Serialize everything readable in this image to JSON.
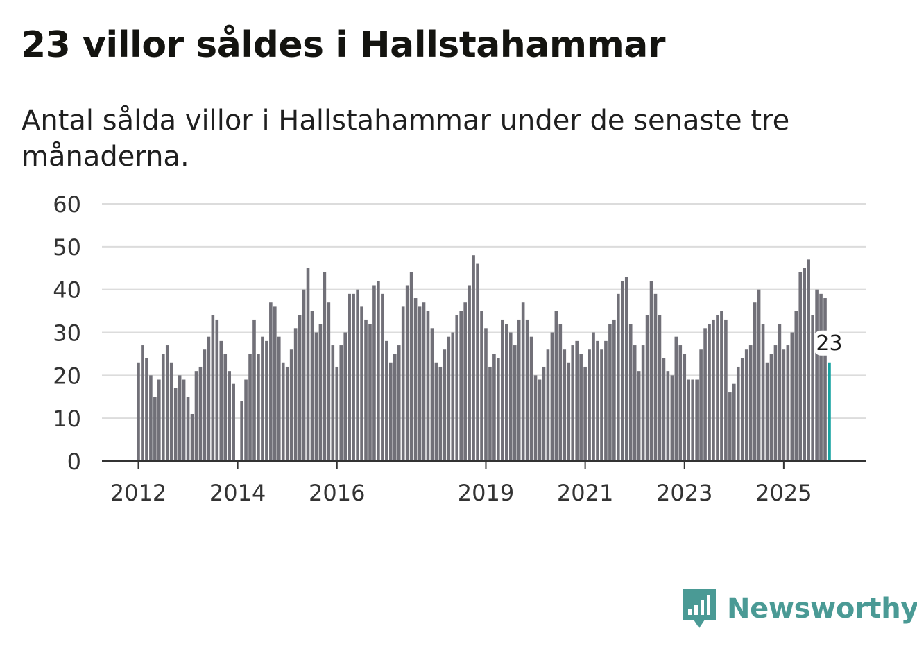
{
  "header": {
    "title": "23 villor såldes i Hallstahammar",
    "subtitle": "Antal sålda villor i Hallstahammar under de senaste tre månaderna."
  },
  "brand": {
    "name": "Newsworthy",
    "logo_icon": "bar-chart-speech-bubble-icon"
  },
  "colors": {
    "bar": "#717078",
    "highlight": "#17a3a1",
    "grid": "#dcdcdc",
    "axis": "#333333",
    "brand": "#4a9a95"
  },
  "chart_data": {
    "type": "bar",
    "title": "23 villor såldes i Hallstahammar",
    "xlabel": "",
    "ylabel": "",
    "ylim": [
      0,
      60
    ],
    "yticks": [
      0,
      10,
      20,
      30,
      40,
      50,
      60
    ],
    "start": "2012-01",
    "frequency": "monthly",
    "xticks": [
      {
        "label": "2012",
        "index": 0
      },
      {
        "label": "2014",
        "index": 24
      },
      {
        "label": "2016",
        "index": 48
      },
      {
        "label": "2019",
        "index": 84
      },
      {
        "label": "2021",
        "index": 108
      },
      {
        "label": "2023",
        "index": 132
      },
      {
        "label": "2025",
        "index": 156
      }
    ],
    "values": [
      23,
      27,
      24,
      20,
      15,
      19,
      25,
      27,
      23,
      17,
      20,
      19,
      15,
      11,
      21,
      22,
      26,
      29,
      34,
      33,
      28,
      25,
      21,
      18,
      0,
      14,
      19,
      25,
      33,
      25,
      29,
      28,
      37,
      36,
      29,
      23,
      22,
      26,
      31,
      34,
      40,
      45,
      35,
      30,
      32,
      44,
      37,
      27,
      22,
      27,
      30,
      39,
      39,
      40,
      36,
      33,
      32,
      41,
      42,
      39,
      28,
      23,
      25,
      27,
      36,
      41,
      44,
      38,
      36,
      37,
      35,
      31,
      23,
      22,
      26,
      29,
      30,
      34,
      35,
      37,
      41,
      48,
      46,
      35,
      31,
      22,
      25,
      24,
      33,
      32,
      30,
      27,
      33,
      37,
      33,
      29,
      20,
      19,
      22,
      26,
      30,
      35,
      32,
      26,
      23,
      27,
      28,
      25,
      22,
      26,
      30,
      28,
      26,
      28,
      32,
      33,
      39,
      42,
      43,
      32,
      27,
      21,
      27,
      34,
      42,
      39,
      34,
      24,
      21,
      20,
      29,
      27,
      25,
      19,
      19,
      19,
      26,
      31,
      32,
      33,
      34,
      35,
      33,
      16,
      18,
      22,
      24,
      26,
      27,
      37,
      40,
      32,
      23,
      25,
      27,
      32,
      26,
      27,
      30,
      35,
      44,
      45,
      47,
      34,
      40,
      39,
      38,
      23
    ],
    "highlight": {
      "index": 167,
      "label": "23"
    }
  }
}
